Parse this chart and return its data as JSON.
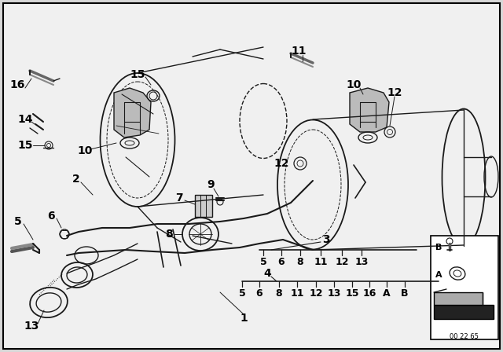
{
  "bg_color": "#d8d8d8",
  "diagram_bg": "#f0f0f0",
  "line_color": "#1a1a1a",
  "border_color": "#000000",
  "bottom_code": "00 22 65",
  "legend3_items": [
    "5",
    "6",
    "8",
    "11",
    "12",
    "13"
  ],
  "legend4_items": [
    "5",
    "6",
    "8",
    "11",
    "12",
    "13",
    "15",
    "16",
    "A",
    "B"
  ],
  "legend3_label": "3",
  "legend4_label": "4"
}
